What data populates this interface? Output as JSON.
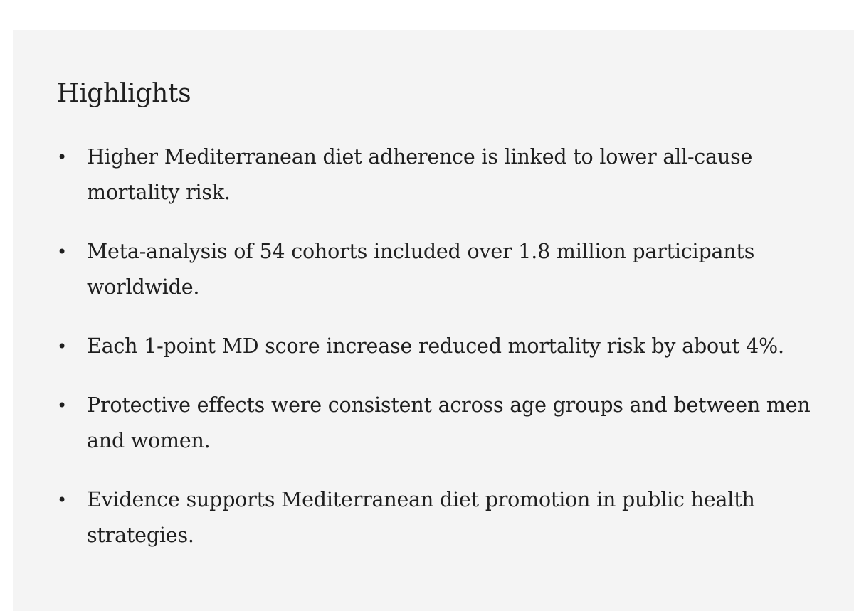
{
  "highlights": {
    "title": "Highlights",
    "bullet_glyph": "•",
    "items": [
      "Higher Mediterranean diet adherence is linked to lower all-cause mortality risk.",
      "Meta-analysis of 54 cohorts included over 1.8 million participants worldwide.",
      "Each 1-point MD score increase reduced mortality risk by about 4%.",
      "Protective effects were consistent across age groups and between men and women.",
      "Evidence supports Mediterranean diet promotion in public health strategies."
    ]
  },
  "colors": {
    "panel_background": "#f4f4f4",
    "text": "#1f1f1f"
  }
}
